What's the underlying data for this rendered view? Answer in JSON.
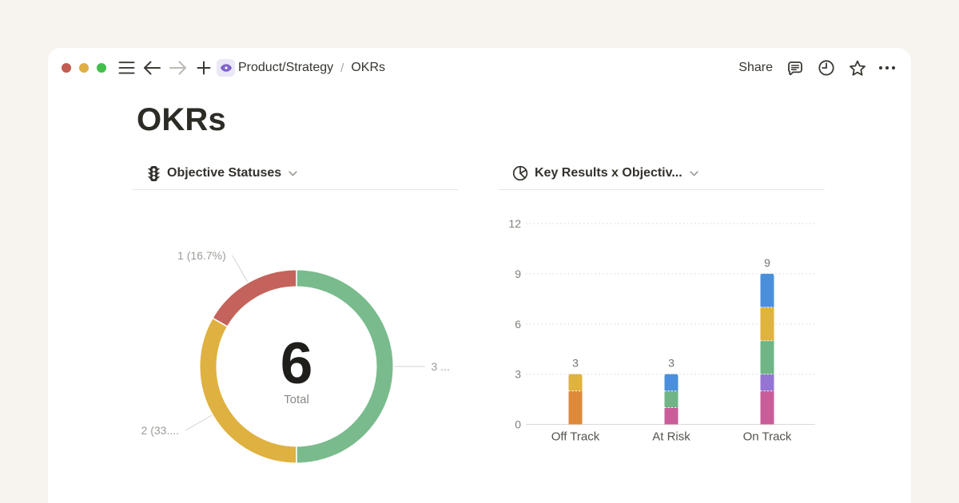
{
  "window": {
    "traffic_lights": [
      {
        "name": "close",
        "color": "#C45B53"
      },
      {
        "name": "minimize",
        "color": "#DFAE45"
      },
      {
        "name": "zoom",
        "color": "#43BE4D"
      }
    ],
    "breadcrumb": {
      "parent": "Product/Strategy",
      "separator": "/",
      "current": "OKRs"
    },
    "share_label": "Share"
  },
  "page": {
    "title": "OKRs"
  },
  "colors": {
    "background": "#F7F3EE",
    "card": "#FFFFFF",
    "text_dark": "#37352F",
    "muted_label": "#9C9B96",
    "accent_purple": "#7A5DC7"
  },
  "chart_data": [
    {
      "type": "donut",
      "title": "Objective Statuses",
      "center_value": "6",
      "center_label": "Total",
      "slices": [
        {
          "value": 3,
          "color": "#79BB8C",
          "label": "3 ..."
        },
        {
          "value": 2,
          "color": "#DFB140",
          "label": "2 (33...."
        },
        {
          "value": 1,
          "color": "#C4635B",
          "label": "1 (16.7%)"
        }
      ],
      "legend_position": "none",
      "label_lines": true
    },
    {
      "type": "bar",
      "title": "Key Results x Objectiv...",
      "stacked": true,
      "categories": [
        "Off Track",
        "At Risk",
        "On Track"
      ],
      "series": [
        {
          "color": "#C95D99",
          "values": [
            0,
            1,
            2
          ]
        },
        {
          "color": "#DE8A3B",
          "values": [
            2,
            0,
            0
          ]
        },
        {
          "color": "#9475D3",
          "values": [
            0,
            0,
            1
          ]
        },
        {
          "color": "#6FB586",
          "values": [
            0,
            1,
            2
          ]
        },
        {
          "color": "#E0B23E",
          "values": [
            1,
            0,
            2
          ]
        },
        {
          "color": "#4A8FDB",
          "values": [
            0,
            1,
            2
          ]
        }
      ],
      "totals": [
        3,
        3,
        9
      ],
      "yticks": [
        0,
        3,
        6,
        9,
        12
      ],
      "ylim": [
        0,
        12
      ],
      "grid": "dotted",
      "xlabel": "",
      "ylabel": ""
    }
  ]
}
